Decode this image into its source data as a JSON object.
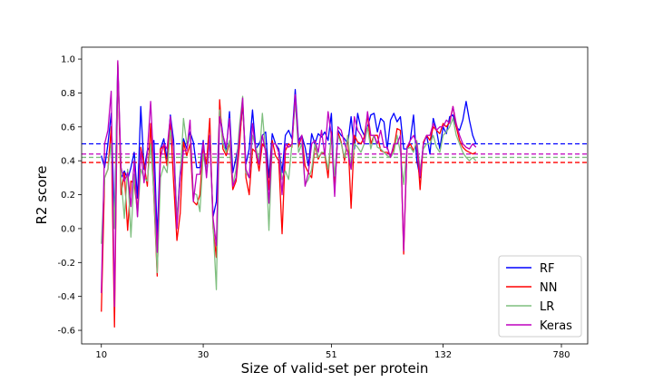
{
  "chart_data": {
    "type": "line",
    "xlabel": "Size of valid-set per protein",
    "ylabel": "R2 score",
    "x_ticks": [
      {
        "index": 0,
        "label": "10"
      },
      {
        "index": 31,
        "label": "30"
      },
      {
        "index": 70,
        "label": "51"
      },
      {
        "index": 104,
        "label": "132"
      },
      {
        "index": 140,
        "label": "780"
      }
    ],
    "x_range": [
      -6,
      148
    ],
    "ylim": [
      -0.68,
      1.07
    ],
    "y_ticks": [
      -0.6,
      -0.4,
      -0.2,
      0.0,
      0.2,
      0.4,
      0.6,
      0.8,
      1.0
    ],
    "legend_position": "lower right",
    "series": [
      {
        "name": "RF",
        "color": "#0000ff",
        "mean": 0.5,
        "values": [
          0.43,
          0.36,
          0.5,
          0.68,
          0.05,
          0.97,
          0.3,
          0.34,
          0.29,
          0.36,
          0.45,
          0.18,
          0.72,
          0.35,
          0.46,
          0.49,
          0.52,
          -0.05,
          0.47,
          0.53,
          0.41,
          0.67,
          0.52,
          0.05,
          0.33,
          0.53,
          0.47,
          0.57,
          0.51,
          0.36,
          0.36,
          0.52,
          0.32,
          0.53,
          0.07,
          0.16,
          0.7,
          0.55,
          0.46,
          0.69,
          0.33,
          0.42,
          0.52,
          0.73,
          0.38,
          0.47,
          0.7,
          0.47,
          0.5,
          0.55,
          0.57,
          0.3,
          0.56,
          0.5,
          0.47,
          0.33,
          0.55,
          0.58,
          0.53,
          0.82,
          0.52,
          0.55,
          0.48,
          0.37,
          0.56,
          0.5,
          0.56,
          0.54,
          0.57,
          0.52,
          0.68,
          0.23,
          0.58,
          0.55,
          0.53,
          0.5,
          0.66,
          0.47,
          0.68,
          0.59,
          0.55,
          0.6,
          0.67,
          0.68,
          0.57,
          0.65,
          0.63,
          0.47,
          0.64,
          0.68,
          0.63,
          0.66,
          0.47,
          0.47,
          0.52,
          0.67,
          0.4,
          0.3,
          0.5,
          0.55,
          0.44,
          0.65,
          0.58,
          0.47,
          0.6,
          0.56,
          0.66,
          0.67,
          0.6,
          0.58,
          0.64,
          0.75,
          0.64,
          0.55,
          0.5
        ],
        "points": 115
      },
      {
        "name": "NN",
        "color": "#ff0000",
        "mean": 0.39,
        "values": [
          -0.49,
          0.3,
          0.35,
          0.6,
          -0.58,
          0.98,
          0.2,
          0.33,
          -0.01,
          0.28,
          0.27,
          0.1,
          0.48,
          0.38,
          0.25,
          0.62,
          0.18,
          -0.28,
          0.47,
          0.49,
          0.37,
          0.65,
          0.27,
          -0.07,
          0.09,
          0.51,
          0.43,
          0.5,
          0.16,
          0.14,
          0.2,
          0.48,
          0.38,
          0.65,
          0.0,
          -0.17,
          0.76,
          0.47,
          0.43,
          0.51,
          0.23,
          0.28,
          0.48,
          0.76,
          0.3,
          0.2,
          0.47,
          0.45,
          0.34,
          0.5,
          0.47,
          0.23,
          0.52,
          0.43,
          0.4,
          -0.03,
          0.46,
          0.5,
          0.48,
          0.78,
          0.48,
          0.55,
          0.37,
          0.33,
          0.3,
          0.49,
          0.41,
          0.45,
          0.44,
          0.3,
          0.57,
          0.24,
          0.57,
          0.51,
          0.4,
          0.55,
          0.12,
          0.55,
          0.51,
          0.5,
          0.54,
          0.67,
          0.5,
          0.55,
          0.55,
          0.46,
          0.45,
          0.45,
          0.43,
          0.47,
          0.59,
          0.58,
          -0.15,
          0.47,
          0.5,
          0.46,
          0.51,
          0.23,
          0.51,
          0.55,
          0.52,
          0.6,
          0.58,
          0.56,
          0.62,
          0.6,
          0.63,
          0.72,
          0.6,
          0.52,
          0.48,
          0.46,
          0.45,
          0.44,
          0.45
        ],
        "points": 115
      },
      {
        "name": "LR",
        "color": "#7fbf7f",
        "mean": 0.42,
        "values": [
          -0.09,
          0.3,
          0.35,
          0.5,
          0.0,
          0.97,
          0.3,
          0.06,
          0.35,
          -0.05,
          0.32,
          0.07,
          0.35,
          0.3,
          0.28,
          0.5,
          0.2,
          -0.26,
          0.3,
          0.37,
          0.33,
          0.58,
          0.48,
          0.05,
          0.3,
          0.65,
          0.5,
          0.55,
          0.21,
          0.2,
          0.1,
          0.44,
          0.33,
          0.55,
          0.02,
          -0.36,
          0.7,
          0.5,
          0.45,
          0.52,
          0.26,
          0.35,
          0.6,
          0.78,
          0.33,
          0.3,
          0.55,
          0.48,
          0.4,
          0.68,
          0.45,
          -0.01,
          0.5,
          0.5,
          0.45,
          0.29,
          0.34,
          0.29,
          0.5,
          0.75,
          0.45,
          0.5,
          0.26,
          0.29,
          0.35,
          0.5,
          0.42,
          0.45,
          0.45,
          0.35,
          0.55,
          0.31,
          0.55,
          0.5,
          0.42,
          0.55,
          0.35,
          0.5,
          0.48,
          0.45,
          0.5,
          0.6,
          0.47,
          0.55,
          0.48,
          0.47,
          0.45,
          0.43,
          0.42,
          0.45,
          0.55,
          0.45,
          0.26,
          0.47,
          0.48,
          0.45,
          0.52,
          0.35,
          0.47,
          0.5,
          0.5,
          0.55,
          0.48,
          0.45,
          0.55,
          0.57,
          0.6,
          0.65,
          0.55,
          0.5,
          0.45,
          0.42,
          0.4,
          0.42,
          0.4
        ],
        "points": 115
      },
      {
        "name": "Keras",
        "color": "#bf00bf",
        "mean": 0.44,
        "values": [
          -0.38,
          0.5,
          0.58,
          0.81,
          -0.46,
          0.99,
          0.36,
          0.28,
          0.33,
          0.13,
          0.4,
          0.07,
          0.46,
          0.27,
          0.45,
          0.75,
          0.35,
          -0.14,
          0.42,
          0.5,
          0.47,
          0.66,
          0.46,
          0.0,
          0.3,
          0.46,
          0.46,
          0.64,
          0.16,
          0.32,
          0.32,
          0.51,
          0.3,
          0.55,
          0.06,
          -0.1,
          0.66,
          0.55,
          0.48,
          0.65,
          0.25,
          0.3,
          0.55,
          0.77,
          0.35,
          0.3,
          0.62,
          0.45,
          0.38,
          0.55,
          0.45,
          0.15,
          0.5,
          0.5,
          0.45,
          0.2,
          0.5,
          0.48,
          0.5,
          0.79,
          0.5,
          0.55,
          0.25,
          0.33,
          0.5,
          0.52,
          0.45,
          0.58,
          0.43,
          0.69,
          0.55,
          0.19,
          0.6,
          0.58,
          0.5,
          0.45,
          0.35,
          0.66,
          0.58,
          0.55,
          0.5,
          0.69,
          0.55,
          0.55,
          0.5,
          0.58,
          0.48,
          0.48,
          0.42,
          0.5,
          0.5,
          0.55,
          -0.13,
          0.48,
          0.52,
          0.55,
          0.5,
          0.31,
          0.5,
          0.55,
          0.55,
          0.62,
          0.58,
          0.6,
          0.6,
          0.64,
          0.62,
          0.72,
          0.62,
          0.55,
          0.5,
          0.48,
          0.47,
          0.5,
          0.48
        ],
        "points": 115
      }
    ]
  }
}
